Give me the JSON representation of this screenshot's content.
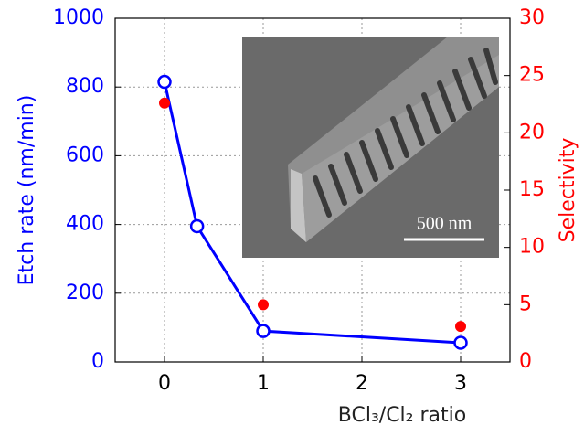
{
  "chart_data": {
    "type": "line",
    "xlabel": "BCl₃/Cl₂ ratio",
    "ylabel": "Etch rate (nm/min)",
    "y2label": "Selectivity",
    "xlim": [
      -0.5,
      3.5
    ],
    "xticks": [
      0,
      1,
      2,
      3
    ],
    "ylim": [
      0,
      1000
    ],
    "yticks": [
      0,
      200,
      400,
      600,
      800,
      1000
    ],
    "y2lim": [
      0,
      30
    ],
    "y2ticks": [
      0,
      5,
      10,
      15,
      20,
      25,
      30
    ],
    "grid": true,
    "yaxis_color": "#0000ff",
    "y2axis_color": "#ff0000",
    "series": [
      {
        "color": "#0000ff",
        "x": [
          0,
          0.33,
          1,
          3
        ],
        "values": [
          815,
          395,
          90,
          56
        ],
        "marker": "open-circle",
        "line": true
      },
      {
        "color": "#ff0000",
        "axis": "y2",
        "x": [
          0,
          1,
          3
        ],
        "values": [
          22.6,
          5,
          3.1
        ],
        "marker": "filled-circle",
        "line": false
      }
    ],
    "inset_scale_label": "500 nm"
  }
}
